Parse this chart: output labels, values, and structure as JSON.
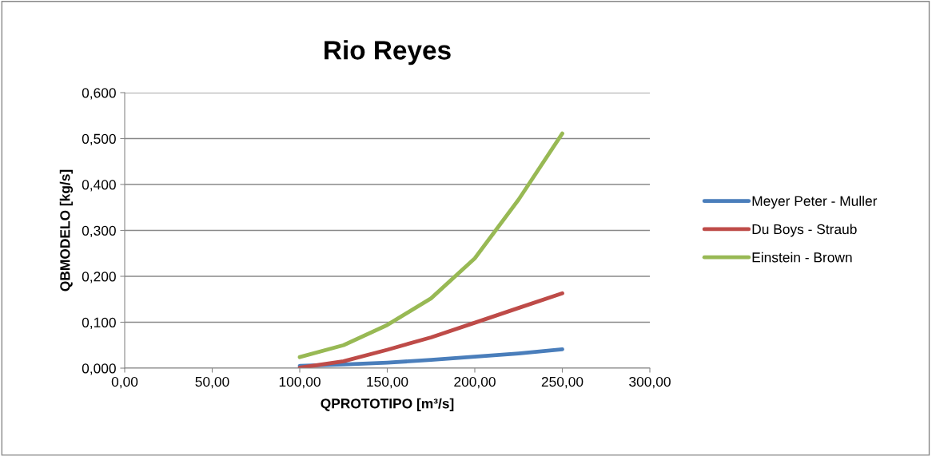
{
  "chart_data": {
    "type": "line",
    "title": "Rio Reyes",
    "xlabel": "QPROTOTIPO [m³/s]",
    "ylabel": "QBMODELO [kg/s]",
    "x": [
      100,
      125,
      150,
      175,
      200,
      225,
      250
    ],
    "series": [
      {
        "name": "Meyer Peter - Muller",
        "color": "#4a7ebb",
        "values": [
          0.005,
          0.008,
          0.012,
          0.018,
          0.025,
          0.032,
          0.041
        ]
      },
      {
        "name": "Du Boys - Straub",
        "color": "#be4b48",
        "values": [
          0.001,
          0.015,
          0.04,
          0.067,
          0.099,
          0.131,
          0.163
        ]
      },
      {
        "name": "Einstein - Brown",
        "color": "#98b954",
        "values": [
          0.024,
          0.05,
          0.094,
          0.152,
          0.239,
          0.367,
          0.511
        ]
      }
    ],
    "xlim": [
      0,
      300
    ],
    "xticks": [
      {
        "value": 0,
        "label": "0,00"
      },
      {
        "value": 50,
        "label": "50,00"
      },
      {
        "value": 100,
        "label": "100,00"
      },
      {
        "value": 150,
        "label": "150,00"
      },
      {
        "value": 200,
        "label": "200,00"
      },
      {
        "value": 250,
        "label": "250,00"
      },
      {
        "value": 300,
        "label": "300,00"
      }
    ],
    "ylim": [
      0,
      0.6
    ],
    "yticks": [
      {
        "value": 0,
        "label": "0,000"
      },
      {
        "value": 0.1,
        "label": "0,100"
      },
      {
        "value": 0.2,
        "label": "0,200"
      },
      {
        "value": 0.3,
        "label": "0,300"
      },
      {
        "value": 0.4,
        "label": "0,400"
      },
      {
        "value": 0.5,
        "label": "0,500"
      },
      {
        "value": 0.6,
        "label": "0,600"
      }
    ],
    "grid": "y",
    "legend": "right",
    "marker": "none",
    "line_style": "solid"
  }
}
